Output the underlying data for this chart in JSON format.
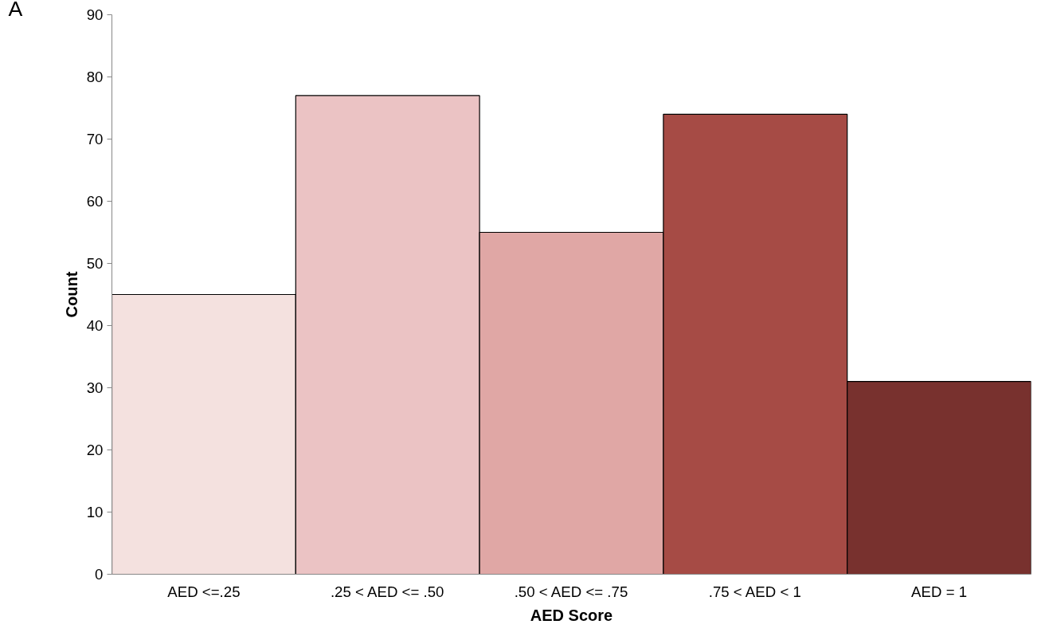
{
  "chart_data": {
    "type": "bar",
    "xlabel": "AED Score",
    "ylabel": "Count",
    "annotations": [
      "A"
    ],
    "categories": [
      "AED <=.25",
      ".25 < AED <= .50",
      ".50 < AED <= .75",
      ".75 < AED < 1",
      "AED = 1"
    ],
    "values": [
      45,
      77,
      55,
      74,
      31
    ],
    "colors": [
      "#f4e1df",
      "#ebc3c4",
      "#e0a7a5",
      "#a64b45",
      "#78312e"
    ],
    "ylim": [
      0,
      90
    ],
    "yticks": [
      0,
      10,
      20,
      30,
      40,
      50,
      60,
      70,
      80,
      90
    ],
    "grid": false
  }
}
